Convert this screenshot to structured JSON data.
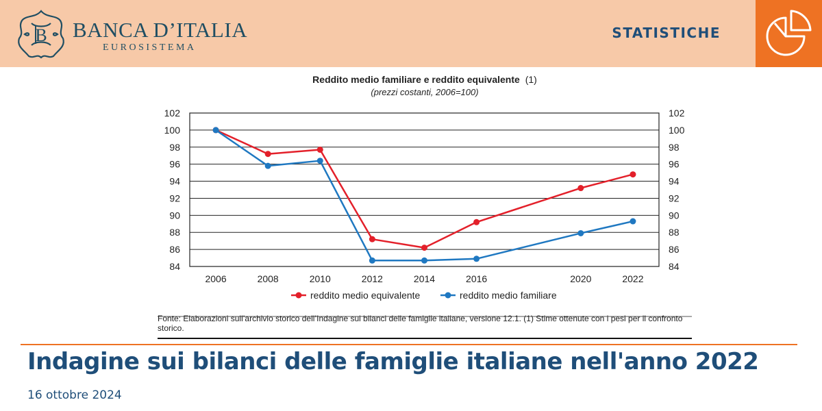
{
  "header": {
    "brand_name": "BANCA D’ITALIA",
    "brand_sub": "EUROSISTEMA",
    "section_label": "STATISTICHE",
    "icon": "pie-chart-icon",
    "colors": {
      "band": "#f7c9a8",
      "accent": "#ee7223",
      "brand": "#1f4e79"
    }
  },
  "chart_data": {
    "type": "line",
    "title": "Reddito medio familiare e reddito equivalente",
    "title_note": "(1)",
    "subtitle": "(prezzi costanti, 2006=100)",
    "x": [
      2006,
      2008,
      2010,
      2012,
      2014,
      2016,
      2020,
      2022
    ],
    "x_tick_labels": [
      "2006",
      "2008",
      "2010",
      "2012",
      "2014",
      "2016",
      "2020",
      "2022"
    ],
    "ylim": [
      84,
      102
    ],
    "y_ticks": [
      84,
      86,
      88,
      90,
      92,
      94,
      96,
      98,
      100,
      102
    ],
    "y_axis_both_sides": true,
    "grid": "horizontal",
    "series": [
      {
        "name": "reddito medio equivalente",
        "color": "#e3202a",
        "values": [
          100,
          97.2,
          97.7,
          87.2,
          86.2,
          89.2,
          93.2,
          94.8
        ]
      },
      {
        "name": "reddito medio familiare",
        "color": "#1f78c1",
        "values": [
          100,
          95.8,
          96.4,
          84.7,
          84.7,
          84.9,
          87.9,
          89.3
        ]
      }
    ],
    "legend_position": "bottom",
    "source_note": "Fonte: Elaborazioni sull’archivio storico dell’Indagine sui bilanci delle famiglie italiane, versione 12.1. (1) Stime ottenute con i pesi per il confronto storico."
  },
  "footer": {
    "title": "Indagine sui bilanci delle famiglie italiane nell'anno 2022",
    "date": "16 ottobre 2024"
  }
}
